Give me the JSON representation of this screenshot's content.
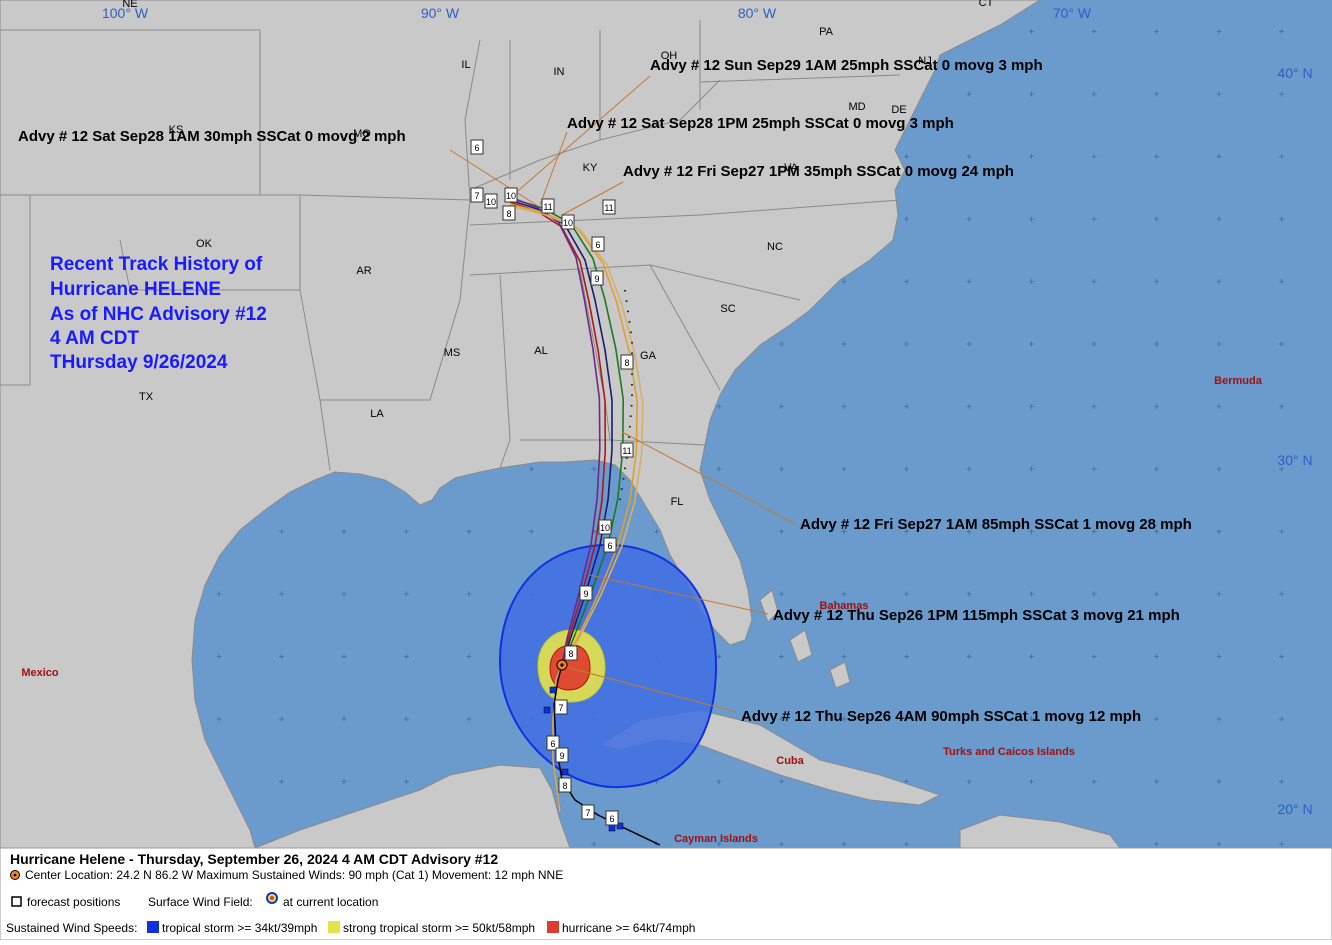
{
  "map": {
    "axis_labels": [
      "100° W",
      "90° W",
      "80° W",
      "70° W",
      "40° N",
      "30° N",
      "20° N"
    ],
    "state_labels": [
      "NE",
      "KS",
      "OK",
      "TX",
      "MO",
      "AR",
      "LA",
      "MS",
      "AL",
      "GA",
      "FL",
      "SC",
      "NC",
      "KY",
      "IN",
      "IL",
      "OH",
      "PA",
      "VA",
      "MD",
      "DE",
      "NJ",
      "CT"
    ],
    "place_labels": [
      "Mexico",
      "Bermuda",
      "Bahamas",
      "Cuba",
      "Turks and Caicos Islands",
      "Cayman Islands"
    ],
    "forecast_labels": [
      "6",
      "7",
      "10",
      "8",
      "10",
      "11",
      "10",
      "6",
      "11",
      "9",
      "8",
      "11",
      "6",
      "10",
      "9",
      "8",
      "7",
      "6",
      "9",
      "8",
      "7",
      "6"
    ],
    "advisories": [
      "Advy # 12 Sun Sep29 1AM  25mph SSCat 0 movg 3 mph",
      "Advy # 12 Sat Sep28 1PM  25mph SSCat 0 movg 3 mph",
      "Advy # 12 Sat Sep28 1AM  30mph SSCat 0 movg 2 mph",
      "Advy # 12 Fri Sep27 1PM  35mph SSCat 0 movg 24 mph",
      "Advy # 12 Fri Sep27 1AM  85mph SSCat 1 movg 28 mph",
      "Advy # 12 Thu Sep26 1PM  115mph SSCat 3 movg 21 mph",
      "Advy # 12 Thu Sep26 4AM  90mph SSCat 1 movg 12 mph"
    ]
  },
  "title_block": [
    "Recent Track History of",
    "Hurricane HELENE",
    "As of NHC Advisory #12",
    "4 AM CDT",
    "THursday 9/26/2024"
  ],
  "legend": {
    "header": "Hurricane Helene  -  Thursday, September 26, 2024  4 AM CDT   Advisory #12",
    "details": "Center Location: 24.2 N   86.2 W   Maximum Sustained Winds: 90 mph (Cat 1) Movement: 12 mph NNE",
    "forecast_positions": "forecast positions",
    "surface_wind_field": "Surface Wind Field:",
    "at_current_location": "at current location",
    "sustained_wind_speeds": "Sustained Wind Speeds:",
    "tropical_storm": "tropical storm >= 34kt/39mph",
    "strong_tropical_storm": "strong tropical storm >= 50kt/58mph",
    "hurricane": "hurricane >= 64kt/74mph"
  }
}
